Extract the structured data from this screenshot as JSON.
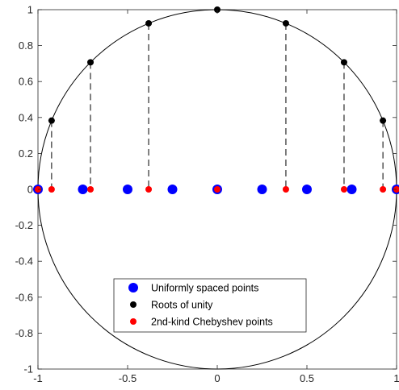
{
  "chart_data": {
    "type": "scatter",
    "title": "",
    "xlabel": "",
    "ylabel": "",
    "xlim": [
      -1,
      1
    ],
    "ylim": [
      -1,
      1
    ],
    "xticks": [
      "-1",
      "-0.5",
      "0",
      "0.5",
      "1"
    ],
    "yticks": [
      "-1",
      "-0.8",
      "-0.6",
      "-0.4",
      "-0.2",
      "0",
      "0.2",
      "0.4",
      "0.6",
      "0.8",
      "1"
    ],
    "grid": false,
    "legend_position": "bottom-center",
    "unit_circle": true,
    "series": [
      {
        "name": "Uniformly spaced points",
        "color": "#0000ff",
        "marker": "large-dot",
        "x": [
          -1,
          -0.75,
          -0.5,
          -0.25,
          0,
          0.25,
          0.5,
          0.75,
          1
        ],
        "y": [
          0,
          0,
          0,
          0,
          0,
          0,
          0,
          0,
          0
        ]
      },
      {
        "name": "Roots of unity",
        "color": "#000000",
        "marker": "dot",
        "x": [
          1,
          0.9239,
          0.7071,
          0.3827,
          0,
          -0.3827,
          -0.7071,
          -0.9239,
          -1
        ],
        "y": [
          0,
          0.3827,
          0.7071,
          0.9239,
          1,
          0.9239,
          0.7071,
          0.3827,
          0
        ]
      },
      {
        "name": "2nd-kind Chebyshev points",
        "color": "#ff0000",
        "marker": "dot",
        "x": [
          -1,
          -0.9239,
          -0.7071,
          -0.3827,
          0,
          0.3827,
          0.7071,
          0.9239,
          1
        ],
        "y": [
          0,
          0,
          0,
          0,
          0,
          0,
          0,
          0,
          0
        ]
      }
    ],
    "projection_lines": {
      "style": "dashed",
      "color": "#000000",
      "description_x": [
        -0.9239,
        -0.7071,
        -0.3827,
        0,
        0.3827,
        0.7071,
        0.9239
      ]
    }
  }
}
